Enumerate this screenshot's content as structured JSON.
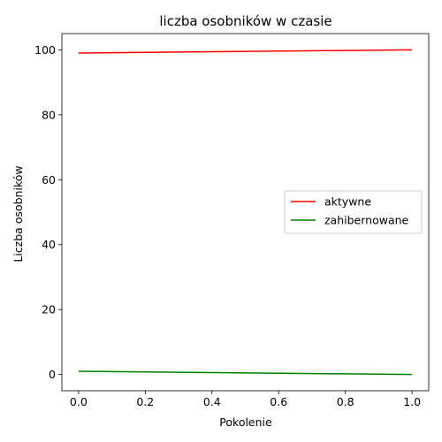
{
  "chart_data": {
    "type": "line",
    "title": "liczba osobników w czasie",
    "xlabel": "Pokolenie",
    "ylabel": "Liczba osobników",
    "xlim": [
      -0.05,
      1.05
    ],
    "ylim": [
      -5,
      105
    ],
    "xticks": [
      0.0,
      0.2,
      0.4,
      0.6,
      0.8,
      1.0
    ],
    "xtick_labels": [
      "0.0",
      "0.2",
      "0.4",
      "0.6",
      "0.8",
      "1.0"
    ],
    "yticks": [
      0,
      20,
      40,
      60,
      80,
      100
    ],
    "ytick_labels": [
      "0",
      "20",
      "40",
      "60",
      "80",
      "100"
    ],
    "grid": false,
    "legend_position": "center-right",
    "series": [
      {
        "name": "aktywne",
        "color": "#ff0000",
        "x": [
          0,
          1
        ],
        "y": [
          99,
          100
        ]
      },
      {
        "name": "zahibernowane",
        "color": "#008000",
        "x": [
          0,
          1
        ],
        "y": [
          1,
          0
        ]
      }
    ]
  }
}
